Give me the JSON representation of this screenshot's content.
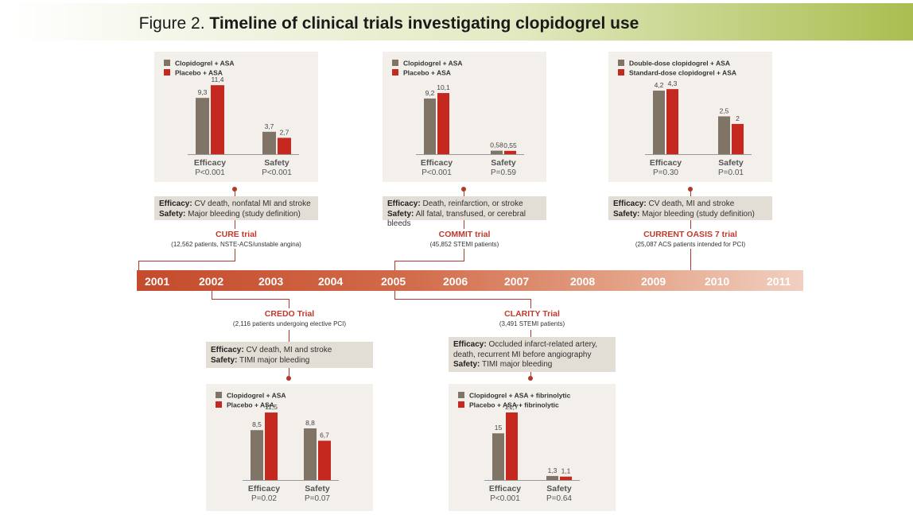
{
  "header": {
    "prefix": "Figure 2.",
    "title": "Timeline of clinical trials investigating clopidogrel use"
  },
  "timeline": {
    "years": [
      "2001",
      "2002",
      "2003",
      "2004",
      "2005",
      "2006",
      "2007",
      "2008",
      "2009",
      "2010",
      "2011"
    ]
  },
  "colors": {
    "series1": "#807466",
    "series2": "#c4281f",
    "accent": "#b5372a",
    "header_green": "#a9be50"
  },
  "trials": {
    "cure": {
      "name": "CURE trial",
      "subtitle": "(12,562 patients, NSTE-ACS/unstable angina)",
      "efficacy_label": "Efficacy:",
      "efficacy_text": "CV death, nonfatal MI and stroke",
      "safety_label": "Safety:",
      "safety_text": "Major bleeding (study definition)"
    },
    "commit": {
      "name": "COMMIT trial",
      "subtitle": "(45,852 STEMI patients)",
      "efficacy_label": "Efficacy:",
      "efficacy_text": "Death, reinfarction, or stroke",
      "safety_label": "Safety:",
      "safety_text": "All fatal, transfused, or cerebral bleeds"
    },
    "current": {
      "name": "CURRENT OASIS 7 trial",
      "subtitle": "(25,087 ACS patients intended for PCI)",
      "efficacy_label": "Efficacy:",
      "efficacy_text": "CV death, MI and stroke",
      "safety_label": "Safety:",
      "safety_text": "Major bleeding (study definition)"
    },
    "credo": {
      "name": "CREDO Trial",
      "subtitle": "(2,116 patients undergoing elective PCI)",
      "efficacy_label": "Efficacy:",
      "efficacy_text": "CV death, MI and stroke",
      "safety_label": "Safety:",
      "safety_text": "TIMI major bleeding"
    },
    "clarity": {
      "name": "CLARITY Trial",
      "subtitle": "(3,491 STEMI patients)",
      "efficacy_label": "Efficacy:",
      "efficacy_text_1": "Occluded infarct-related artery,",
      "efficacy_text_2": "death, recurrent MI before angiography",
      "safety_label": "Safety:",
      "safety_text": "TIMI major bleeding"
    }
  },
  "chart_data": [
    {
      "id": "cure",
      "type": "bar",
      "categories": [
        "Efficacy",
        "Safety"
      ],
      "pvalues": [
        "P<0.001",
        "P<0.001"
      ],
      "series": [
        {
          "name": "Clopidogrel + ASA",
          "values": [
            9.3,
            3.7
          ],
          "labels": [
            "9,3",
            "3,7"
          ]
        },
        {
          "name": "Placebo + ASA",
          "values": [
            11.4,
            2.7
          ],
          "labels": [
            "11,4",
            "2,7"
          ]
        }
      ],
      "ylim": [
        0,
        13
      ]
    },
    {
      "id": "commit",
      "type": "bar",
      "categories": [
        "Efficacy",
        "Safety"
      ],
      "pvalues": [
        "P<0.001",
        "P=0.59"
      ],
      "series": [
        {
          "name": "Clopidogrel + ASA",
          "values": [
            9.2,
            0.58
          ],
          "labels": [
            "9,2",
            "0,58"
          ]
        },
        {
          "name": "Placebo + ASA",
          "values": [
            10.1,
            0.55
          ],
          "labels": [
            "10,1",
            "0,55"
          ]
        }
      ],
      "ylim": [
        0,
        13
      ]
    },
    {
      "id": "current",
      "type": "bar",
      "categories": [
        "Efficacy",
        "Safety"
      ],
      "pvalues": [
        "P=0.30",
        "P=0.01"
      ],
      "series": [
        {
          "name": "Double-dose clopidogrel + ASA",
          "values": [
            4.2,
            2.5
          ],
          "labels": [
            "4,2",
            "2,5"
          ]
        },
        {
          "name": "Standard-dose clopidogrel + ASA",
          "values": [
            4.3,
            2.0
          ],
          "labels": [
            "4,3",
            "2"
          ]
        }
      ],
      "ylim": [
        0,
        5.2
      ]
    },
    {
      "id": "credo",
      "type": "bar",
      "categories": [
        "Efficacy",
        "Safety"
      ],
      "pvalues": [
        "P=0.02",
        "P=0.07"
      ],
      "series": [
        {
          "name": "Clopidogrel + ASA",
          "values": [
            8.5,
            8.8
          ],
          "labels": [
            "8,5",
            "8,8"
          ]
        },
        {
          "name": "Placebo + ASA",
          "values": [
            11.5,
            6.7
          ],
          "labels": [
            "11,5",
            "6,7"
          ]
        }
      ],
      "ylim": [
        0,
        13
      ]
    },
    {
      "id": "clarity",
      "type": "bar",
      "categories": [
        "Efficacy",
        "Safety"
      ],
      "pvalues": [
        "P<0.001",
        "P=0.64"
      ],
      "series": [
        {
          "name": "Clopidogrel + ASA + fibrinolytic",
          "values": [
            15,
            1.3
          ],
          "labels": [
            "15",
            "1,3"
          ]
        },
        {
          "name": "Placebo + ASA + fibrinolytic",
          "values": [
            21.7,
            1.1
          ],
          "labels": [
            "21,7",
            "1,1"
          ]
        }
      ],
      "ylim": [
        0,
        24.5
      ]
    }
  ]
}
